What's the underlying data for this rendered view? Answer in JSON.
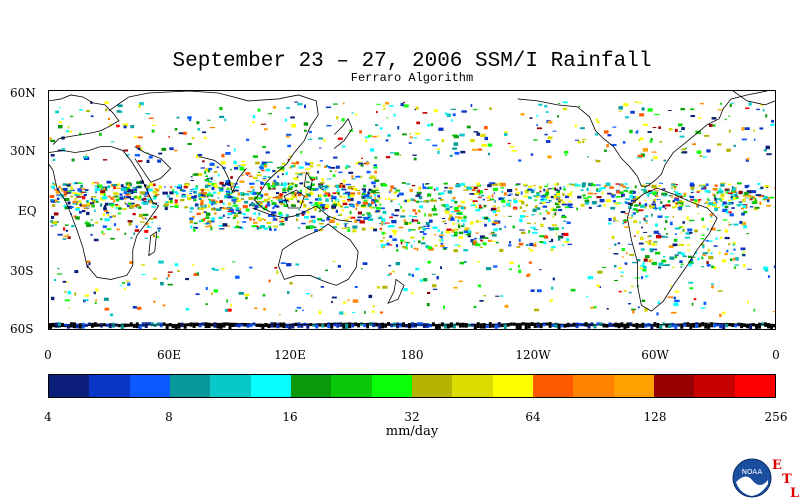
{
  "title": "September 23 – 27, 2006 SSM/I Rainfall",
  "subtitle": "Ferraro Algorithm",
  "lat_labels": [
    "60N",
    "30N",
    "EQ",
    "30S",
    "60S"
  ],
  "lon_labels": [
    "0",
    "60E",
    "120E",
    "180",
    "120W",
    "60W",
    "0"
  ],
  "scale": {
    "tick_labels": [
      "4",
      "8",
      "16",
      "32",
      "64",
      "128",
      "256"
    ],
    "units": "mm/day",
    "colors": [
      "#0a1e7a",
      "#0a36c8",
      "#0a5aff",
      "#089a9a",
      "#08c8c8",
      "#08ffff",
      "#089a08",
      "#08c808",
      "#08ff08",
      "#b4b400",
      "#dcdc00",
      "#ffff00",
      "#ff5a00",
      "#ff8200",
      "#ffa000",
      "#960000",
      "#c80000",
      "#ff0000"
    ]
  },
  "logo": {
    "text": "NOAA",
    "etl_letters": [
      "E",
      "T",
      "L"
    ]
  }
}
